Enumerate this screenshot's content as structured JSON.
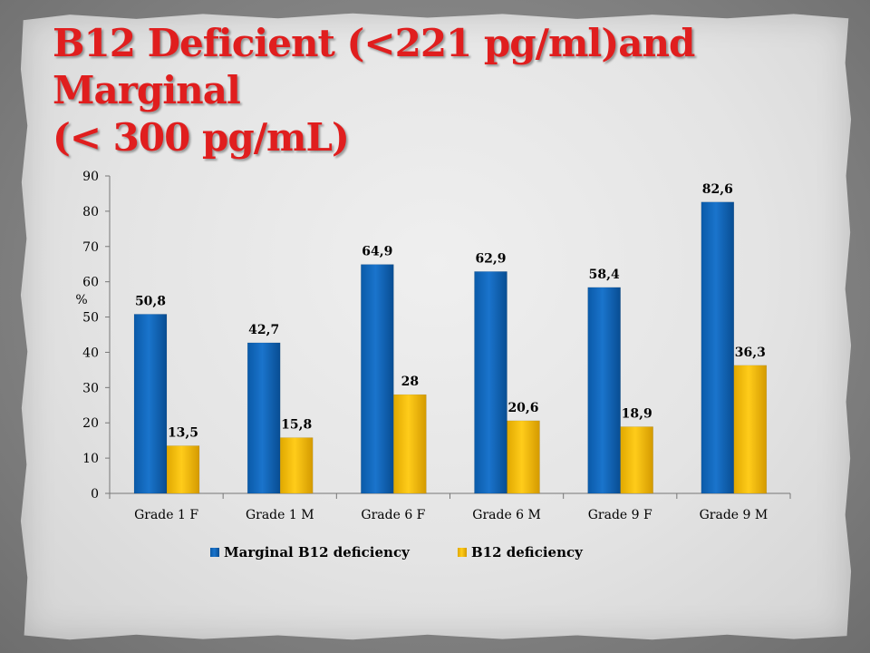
{
  "slide": {
    "title_line1": "B12 Deficient (<221 pg/ml)and Marginal",
    "title_line2": "(< 300 pg/mL)"
  },
  "chart_data": {
    "type": "bar",
    "title": "B12 Deficient (<221 pg/ml)and Marginal (< 300 pg/mL)",
    "ylabel": "%",
    "xlabel": "",
    "categories": [
      "Grade 1 F",
      "Grade 1 M",
      "Grade 6 F",
      "Grade 6 M",
      "Grade 9 F",
      "Grade 9 M"
    ],
    "ylim": [
      0,
      90
    ],
    "yticks": [
      0,
      10,
      20,
      30,
      40,
      50,
      60,
      70,
      80,
      90
    ],
    "grid": false,
    "legend_position": "bottom",
    "series": [
      {
        "name": "Marginal B12 deficiency",
        "color": "#0a63b8",
        "values": [
          50.8,
          42.7,
          64.9,
          62.9,
          58.4,
          82.6
        ],
        "labels": [
          "50,8",
          "42,7",
          "64,9",
          "62,9",
          "58,4",
          "82,6"
        ]
      },
      {
        "name": "B12 deficiency",
        "color": "#f5bc00",
        "values": [
          13.5,
          15.8,
          28,
          20.6,
          18.9,
          36.3
        ],
        "labels": [
          "13,5",
          "15,8",
          "28",
          "20,6",
          "18,9",
          "36,3"
        ]
      }
    ]
  }
}
